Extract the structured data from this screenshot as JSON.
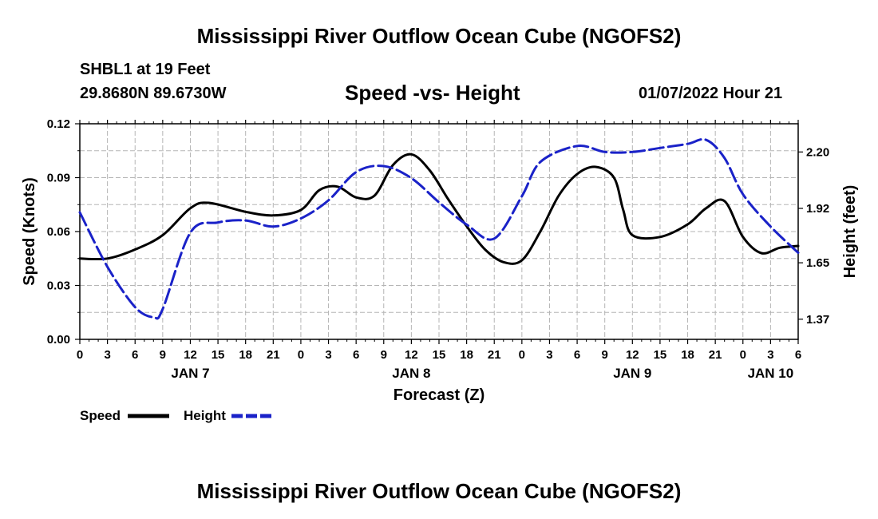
{
  "page": {
    "title_top": "Mississippi River Outflow Ocean Cube (NGOFS2)",
    "title_bottom": "Mississippi River Outflow Ocean Cube (NGOFS2)",
    "station": "SHBL1 at 19 Feet",
    "coordinates": "29.8680N  89.6730W",
    "subtitle": "Speed -vs- Height",
    "timestamp": "01/07/2022 Hour 21"
  },
  "chart_data": {
    "type": "line",
    "title": "Speed -vs- Height",
    "xlabel": "Forecast (Z)",
    "ylabel": "Speed (Knots)",
    "y2label": "Height (feet)",
    "xlim": [
      0,
      78
    ],
    "ylim": [
      0,
      0.12
    ],
    "y2lim": [
      1.27,
      2.34
    ],
    "x_tick_labels": [
      "0",
      "3",
      "6",
      "9",
      "12",
      "15",
      "18",
      "21",
      "0",
      "3",
      "6",
      "9",
      "12",
      "15",
      "18",
      "21",
      "0",
      "3",
      "6",
      "9",
      "12",
      "15",
      "18",
      "21",
      "0",
      "3",
      "6"
    ],
    "y_ticks": [
      "0.00",
      "0.03",
      "0.06",
      "0.09",
      "0.12"
    ],
    "y2_ticks": [
      "1.37",
      "1.65",
      "1.92",
      "2.20"
    ],
    "day_labels": [
      {
        "label": "JAN 7",
        "hour": 12
      },
      {
        "label": "JAN 8",
        "hour": 36
      },
      {
        "label": "JAN 9",
        "hour": 60
      },
      {
        "label": "JAN 10",
        "hour": 75
      }
    ],
    "grid": true,
    "series": [
      {
        "name": "Speed",
        "axis": "left",
        "color": "#000000",
        "dash": "solid",
        "x": [
          0,
          3,
          6,
          9,
          12,
          14,
          18,
          21,
          24,
          26,
          28,
          30,
          32,
          34,
          36,
          38,
          40,
          42,
          44,
          46,
          48,
          50,
          52,
          54,
          56,
          58,
          59,
          60,
          63,
          66,
          68,
          70,
          72,
          74,
          76,
          78
        ],
        "y": [
          0.045,
          0.045,
          0.05,
          0.058,
          0.073,
          0.076,
          0.071,
          0.069,
          0.072,
          0.083,
          0.085,
          0.079,
          0.08,
          0.097,
          0.103,
          0.094,
          0.078,
          0.063,
          0.05,
          0.043,
          0.044,
          0.06,
          0.08,
          0.092,
          0.096,
          0.09,
          0.072,
          0.058,
          0.057,
          0.064,
          0.073,
          0.077,
          0.057,
          0.048,
          0.051,
          0.052
        ]
      },
      {
        "name": "Height",
        "axis": "right",
        "color": "#1a22c8",
        "dash": "long-dash",
        "x": [
          0,
          3,
          6,
          8,
          9,
          12,
          15,
          18,
          21,
          24,
          27,
          30,
          33,
          36,
          39,
          42,
          45,
          48,
          50,
          54,
          57,
          60,
          63,
          66,
          68,
          70,
          72,
          75,
          78
        ],
        "y": [
          1.9,
          1.63,
          1.43,
          1.38,
          1.42,
          1.8,
          1.85,
          1.86,
          1.83,
          1.87,
          1.96,
          2.1,
          2.13,
          2.07,
          1.95,
          1.84,
          1.77,
          1.98,
          2.15,
          2.23,
          2.2,
          2.2,
          2.22,
          2.24,
          2.26,
          2.17,
          1.99,
          1.83,
          1.7
        ]
      }
    ],
    "legend": {
      "placement": "bottom-left",
      "entries": [
        {
          "label": "Speed",
          "color": "#000000",
          "dash": "solid"
        },
        {
          "label": "Height",
          "color": "#1a22c8",
          "dash": "long-dash"
        }
      ]
    }
  }
}
